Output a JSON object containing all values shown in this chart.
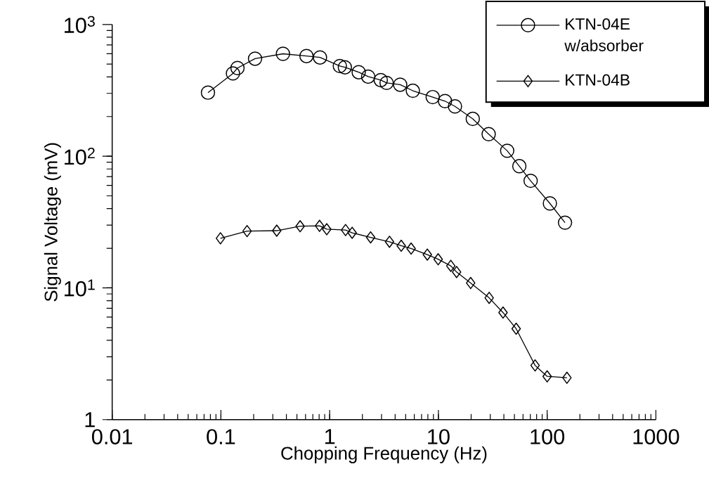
{
  "chart_data": {
    "type": "line",
    "xlabel": "Chopping Frequency (Hz)",
    "ylabel": "Signal Voltage (mV)",
    "log": "xy",
    "xlim": [
      0.01,
      1000
    ],
    "ylim": [
      1,
      1000
    ],
    "xticks": [
      0.01,
      0.1,
      1,
      10,
      100,
      1000
    ],
    "yticks": [
      1,
      {
        "value": 10,
        "label": "10$^{1}$"
      },
      {
        "value": 100,
        "label": "10$^{2}$"
      },
      {
        "value": 1000,
        "label": "10$^{3}$"
      }
    ],
    "grid": false,
    "legend": "top right",
    "line_style": "solid",
    "series": [
      {
        "name": "KTN-04E w/absorber",
        "color": "#000000",
        "marker": "circle",
        "x": [
          0.076,
          0.129,
          0.142,
          0.206,
          0.372,
          0.612,
          0.815,
          1.24,
          1.38,
          1.85,
          2.26,
          2.95,
          3.34,
          4.45,
          5.82,
          8.86,
          11.5,
          14.2,
          20.7,
          29.0,
          42.9,
          55.5,
          70.5,
          106,
          146
        ],
        "values": [
          304,
          425,
          467,
          550,
          599,
          576,
          562,
          484,
          473,
          434,
          402,
          378,
          360,
          349,
          314,
          281,
          262,
          239,
          192,
          147,
          110,
          84,
          65,
          43.8,
          31.3
        ]
      },
      {
        "name": "KTN-04B",
        "color": "#000000",
        "marker": "diamond",
        "x": [
          0.099,
          0.174,
          0.326,
          0.535,
          0.807,
          0.94,
          1.4,
          1.61,
          2.38,
          3.55,
          4.55,
          5.61,
          7.91,
          9.95,
          13.0,
          14.7,
          19.8,
          29.3,
          39.3,
          51.9,
          77.5,
          100,
          152
        ],
        "values": [
          23.8,
          27.0,
          27.2,
          29.4,
          29.6,
          27.9,
          27.5,
          26.2,
          24.2,
          22.4,
          20.9,
          19.9,
          17.9,
          16.5,
          14.7,
          13.2,
          10.9,
          8.4,
          6.5,
          4.9,
          2.58,
          2.13,
          2.08
        ]
      }
    ]
  }
}
